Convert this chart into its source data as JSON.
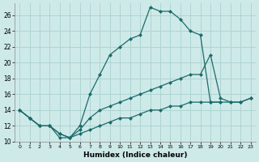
{
  "xlabel": "Humidex (Indice chaleur)",
  "background_color": "#ceeae8",
  "grid_color": "#aed4d2",
  "line_color": "#1a6b6b",
  "xlim": [
    -0.5,
    23.5
  ],
  "ylim": [
    10,
    27.5
  ],
  "xticks": [
    0,
    1,
    2,
    3,
    4,
    5,
    6,
    7,
    8,
    9,
    10,
    11,
    12,
    13,
    14,
    15,
    16,
    17,
    18,
    19,
    20,
    21,
    22,
    23
  ],
  "yticks": [
    10,
    12,
    14,
    16,
    18,
    20,
    22,
    24,
    26
  ],
  "series_peaked_x": [
    0,
    1,
    2,
    3,
    4,
    5,
    6,
    7,
    8,
    9,
    10,
    11,
    12,
    13,
    14,
    15,
    16,
    17,
    18,
    19,
    20
  ],
  "series_peaked_y": [
    14,
    13,
    12,
    12,
    10.5,
    10.5,
    12,
    16,
    18.5,
    21,
    22,
    23,
    23.5,
    27,
    26.5,
    26.5,
    25.5,
    24,
    23.5,
    15,
    15
  ],
  "series_upper_diag_x": [
    0,
    1,
    2,
    3,
    4,
    5,
    6,
    7,
    8,
    9,
    10,
    11,
    12,
    13,
    14,
    15,
    16,
    17,
    18,
    19,
    20,
    21,
    22,
    23
  ],
  "series_upper_diag_y": [
    14,
    13,
    12,
    12,
    11,
    10.5,
    11.5,
    13,
    14,
    14.5,
    15,
    15.5,
    16,
    16.5,
    17,
    17.5,
    18,
    18.5,
    18.5,
    21,
    15.5,
    15,
    15,
    15.5
  ],
  "series_lower_diag_x": [
    0,
    1,
    2,
    3,
    4,
    5,
    6,
    7,
    8,
    9,
    10,
    11,
    12,
    13,
    14,
    15,
    16,
    17,
    18,
    19,
    20,
    21,
    22,
    23
  ],
  "series_lower_diag_y": [
    14,
    13,
    12,
    12,
    11,
    10.5,
    11,
    11.5,
    12,
    12.5,
    13,
    13,
    13.5,
    14,
    14,
    14.5,
    14.5,
    15,
    15,
    15,
    15,
    15,
    15,
    15.5
  ]
}
